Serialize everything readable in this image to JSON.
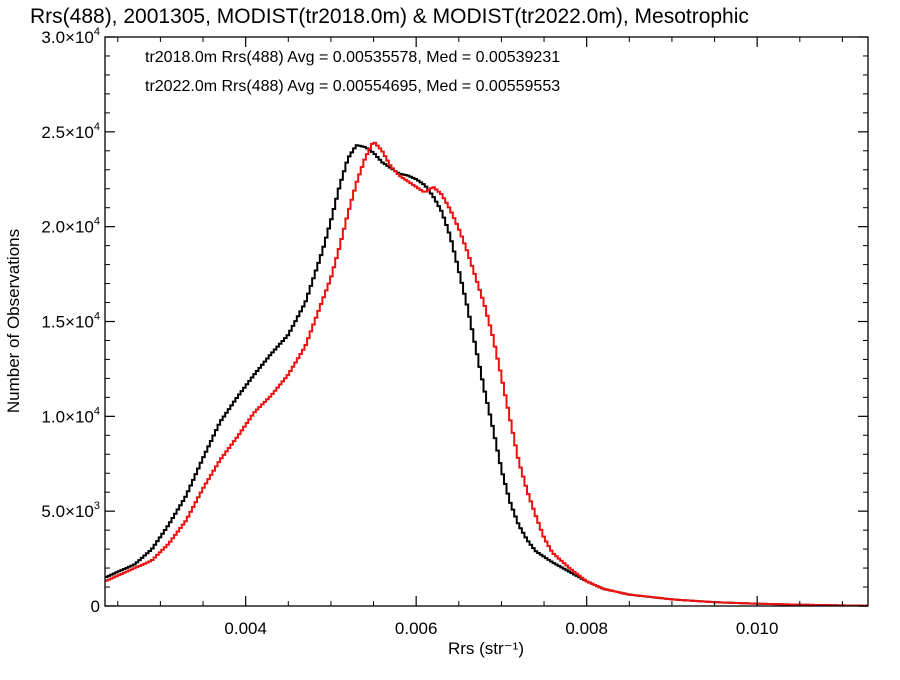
{
  "chart_data": {
    "type": "line",
    "step": true,
    "title": "Rrs(488), 2001305, MODIST(tr2018.0m) & MODIST(tr2022.0m), Mesotrophic",
    "xlabel": "Rrs (str⁻¹)",
    "ylabel": "Number of Observations",
    "xlim": [
      0.00235,
      0.0113
    ],
    "ylim": [
      0,
      30000
    ],
    "xticks": [
      {
        "value": 0.004,
        "label": "0.004"
      },
      {
        "value": 0.006,
        "label": "0.006"
      },
      {
        "value": 0.008,
        "label": "0.008"
      },
      {
        "value": 0.01,
        "label": "0.010"
      }
    ],
    "yticks": [
      {
        "value": 0,
        "label": "0"
      },
      {
        "value": 5000,
        "mantissa": "5.0×10",
        "exp": "3"
      },
      {
        "value": 10000,
        "mantissa": "1.0×10",
        "exp": "4"
      },
      {
        "value": 15000,
        "mantissa": "1.5×10",
        "exp": "4"
      },
      {
        "value": 20000,
        "mantissa": "2.0×10",
        "exp": "4"
      },
      {
        "value": 25000,
        "mantissa": "2.5×10",
        "exp": "4"
      },
      {
        "value": 30000,
        "mantissa": "3.0×10",
        "exp": "4"
      }
    ],
    "legend": {
      "placement": "top-left",
      "entries": [
        {
          "text": "tr2018.0m Rrs(488) Avg = 0.00535578, Med = 0.00539231",
          "color": "#000000"
        },
        {
          "text": "tr2022.0m Rrs(488) Avg = 0.00554695, Med = 0.00559553",
          "color": "#ee1111"
        }
      ]
    },
    "series": [
      {
        "color": "#000000",
        "x": [
          0.00235,
          0.0025,
          0.0027,
          0.0029,
          0.0031,
          0.0033,
          0.0035,
          0.0037,
          0.0039,
          0.0041,
          0.0043,
          0.0045,
          0.0047,
          0.0049,
          0.005,
          0.0051,
          0.0052,
          0.0053,
          0.0054,
          0.0055,
          0.0056,
          0.0057,
          0.0058,
          0.0059,
          0.006,
          0.0061,
          0.0062,
          0.0063,
          0.0064,
          0.0065,
          0.0066,
          0.0067,
          0.0068,
          0.0069,
          0.007,
          0.0071,
          0.0072,
          0.0073,
          0.0074,
          0.0076,
          0.0078,
          0.008,
          0.0082,
          0.0085,
          0.009,
          0.0095,
          0.01,
          0.0105,
          0.011,
          0.0113
        ],
        "y": [
          1500,
          1800,
          2200,
          3000,
          4300,
          5800,
          7800,
          9700,
          11000,
          12200,
          13300,
          14300,
          16000,
          18700,
          20300,
          22100,
          23600,
          24300,
          24200,
          23900,
          23400,
          23100,
          22800,
          22700,
          22500,
          22200,
          21600,
          20800,
          19500,
          17700,
          15800,
          13600,
          11400,
          9400,
          7200,
          5500,
          4300,
          3500,
          2900,
          2300,
          1800,
          1300,
          900,
          600,
          350,
          200,
          120,
          70,
          30,
          20
        ]
      },
      {
        "color": "#ee1111",
        "x": [
          0.00235,
          0.0025,
          0.0027,
          0.0029,
          0.0031,
          0.0033,
          0.0035,
          0.0037,
          0.0039,
          0.0041,
          0.0043,
          0.0045,
          0.0047,
          0.0049,
          0.005,
          0.0051,
          0.0052,
          0.0053,
          0.0054,
          0.0055,
          0.0056,
          0.0057,
          0.0058,
          0.0059,
          0.006,
          0.0061,
          0.0062,
          0.0063,
          0.0064,
          0.0065,
          0.0066,
          0.0067,
          0.0068,
          0.0069,
          0.007,
          0.0071,
          0.0072,
          0.0073,
          0.0074,
          0.0075,
          0.0076,
          0.0078,
          0.008,
          0.0082,
          0.0085,
          0.009,
          0.0095,
          0.01,
          0.0105,
          0.011,
          0.0113
        ],
        "y": [
          1300,
          1600,
          2000,
          2400,
          3300,
          4500,
          6200,
          7700,
          8900,
          10200,
          11100,
          12200,
          13700,
          16100,
          17300,
          18900,
          20700,
          22300,
          23600,
          24500,
          24000,
          23200,
          22700,
          22400,
          22100,
          21800,
          22100,
          21700,
          20900,
          19900,
          18700,
          17300,
          15900,
          14200,
          12100,
          9900,
          7700,
          6100,
          4800,
          3600,
          2800,
          2000,
          1300,
          900,
          600,
          350,
          200,
          120,
          70,
          30,
          20
        ]
      }
    ]
  }
}
